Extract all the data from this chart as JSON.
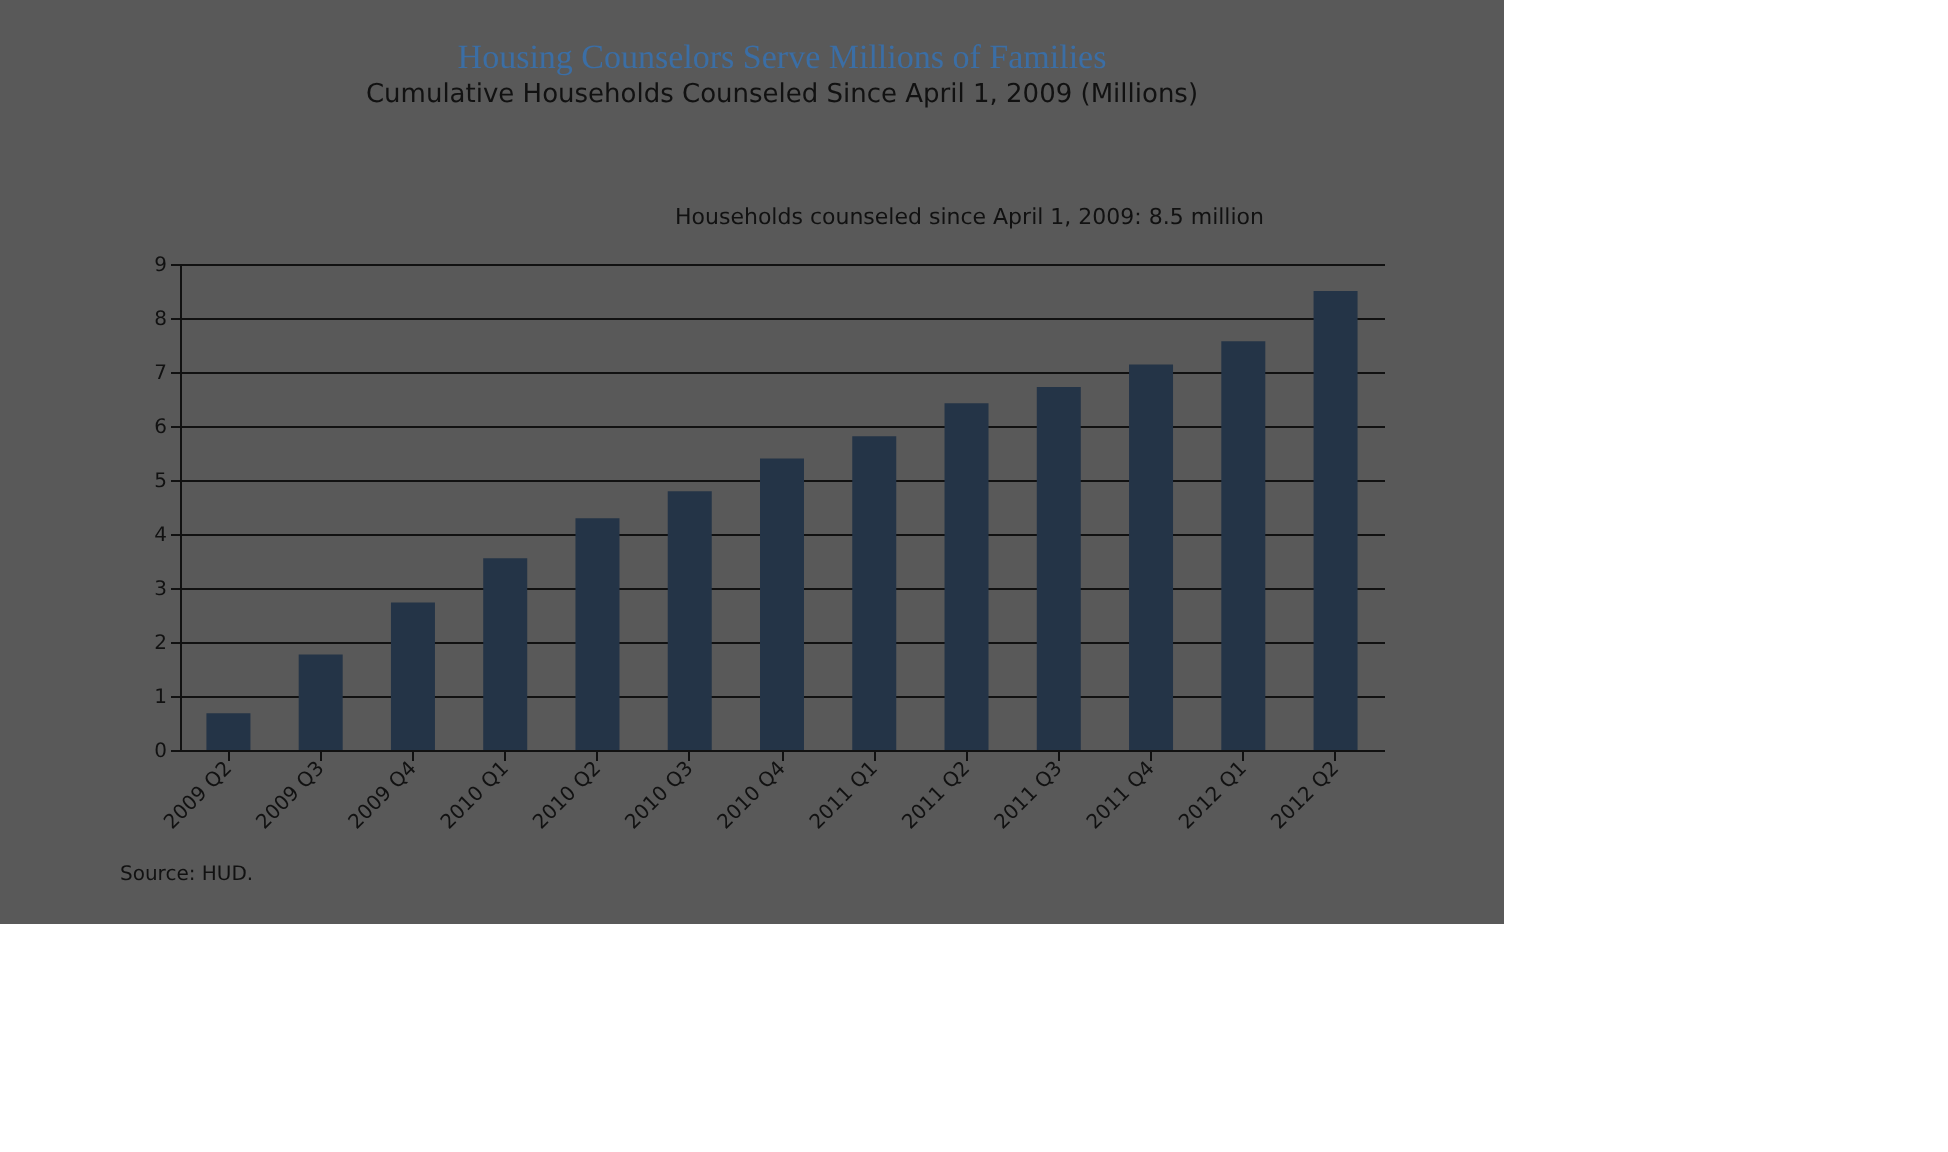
{
  "chart_data": {
    "type": "bar",
    "title": "Housing Counselors Serve Millions of Families",
    "subtitle": "Cumulative Households Counseled Since April 1, 2009 (Millions)",
    "categories": [
      "2009 Q2",
      "2009 Q3",
      "2009 Q4",
      "2010 Q1",
      "2010 Q2",
      "2010 Q3",
      "2010 Q4",
      "2011 Q1",
      "2011 Q2",
      "2011 Q3",
      "2011 Q4",
      "2012 Q1",
      "2012 Q2"
    ],
    "series": [
      {
        "color": "#243447",
        "values": [
          0.68,
          1.77,
          2.73,
          3.55,
          4.29,
          4.79,
          5.4,
          5.81,
          6.42,
          6.72,
          7.14,
          7.57,
          8.5
        ]
      }
    ],
    "ylim": [
      0,
      9
    ],
    "yticks": [
      0,
      1,
      2,
      3,
      4,
      5,
      6,
      7,
      8,
      9
    ],
    "grid": "y",
    "annotations": [
      "Households counseled  since  April 1, 2009: 8.5 million",
      "Source:  HUD."
    ]
  }
}
